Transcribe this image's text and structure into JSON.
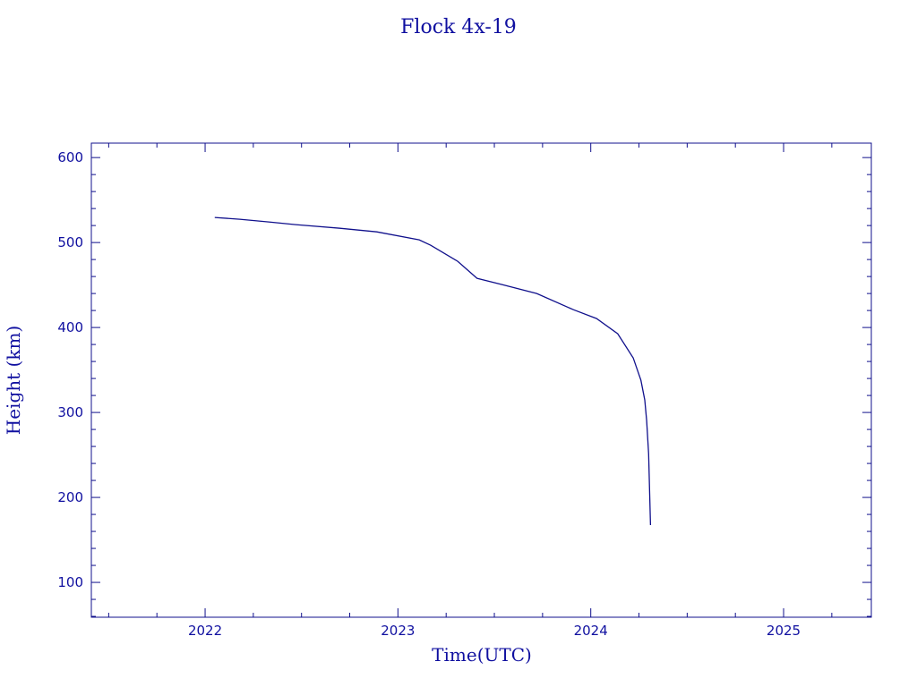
{
  "chart_data": {
    "type": "line",
    "title": "Flock 4x-19",
    "xlabel": "Time(UTC)",
    "ylabel": "Height (km)",
    "xlim": [
      2021.41,
      2025.455
    ],
    "ylim": [
      59,
      617
    ],
    "xticks": [
      2022,
      2023,
      2024,
      2025
    ],
    "yticks": [
      100,
      200,
      300,
      400,
      500,
      600
    ],
    "grid": false,
    "color": "#10108c",
    "series": [
      {
        "x": [
          2022.05,
          2022.18,
          2022.33,
          2022.47,
          2022.7,
          2022.89,
          2023.11,
          2023.17,
          2023.31,
          2023.41,
          2023.54,
          2023.72,
          2023.91,
          2024.03,
          2024.14,
          2024.22,
          2024.26,
          2024.28,
          2024.29,
          2024.3,
          2024.31
        ],
        "y": [
          529.5,
          527.4,
          524.2,
          521.1,
          516.8,
          512.6,
          503.2,
          496.8,
          477.9,
          457.9,
          450.5,
          440.0,
          421.0,
          410.5,
          392.6,
          364.2,
          337.9,
          314.7,
          290.5,
          251.6,
          167.4
        ]
      }
    ]
  }
}
